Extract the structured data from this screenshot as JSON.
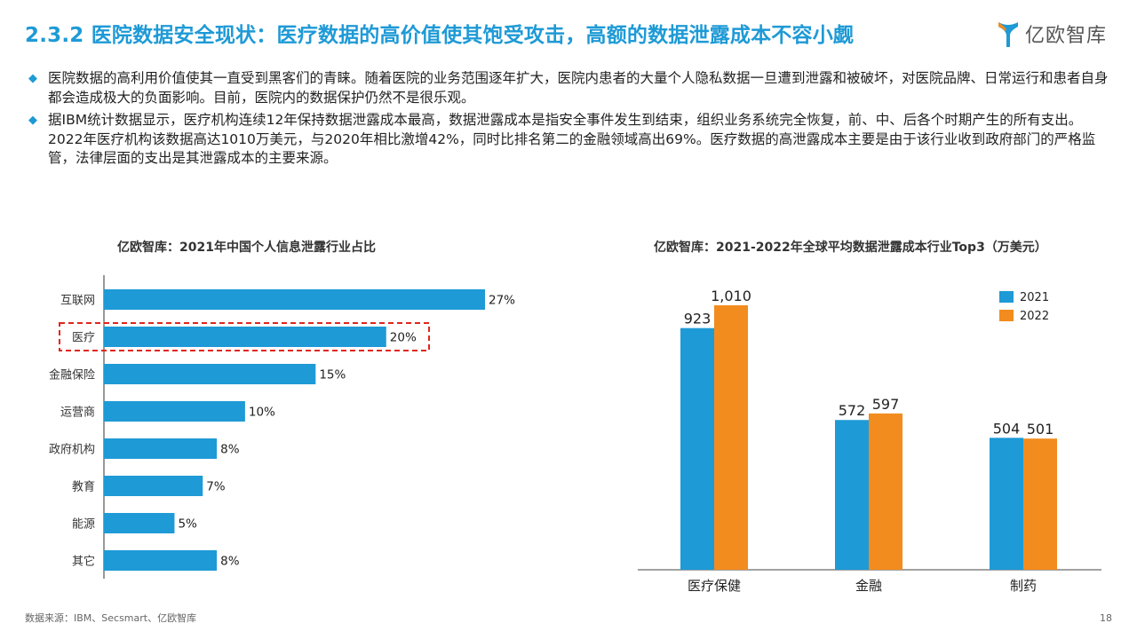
{
  "header": {
    "title": "2.3.2 医院数据安全现状：医疗数据的高价值使其饱受攻击，高额的数据泄露成本不容小觑",
    "logo_text": "亿欧智库"
  },
  "bullets": [
    "医院数据的高利用价值使其一直受到黑客们的青睐。随着医院的业务范围逐年扩大，医院内患者的大量个人隐私数据一旦遭到泄露和被破坏，对医院品牌、日常运行和患者自身都会造成极大的负面影响。目前，医院内的数据保护仍然不是很乐观。",
    "据IBM统计数据显示，医疗机构连续12年保持数据泄露成本最高，数据泄露成本是指安全事件发生到结束，组织业务系统完全恢复，前、中、后各个时期产生的所有支出。2022年医疗机构该数据高达1010万美元，与2020年相比激增42%，同时比排名第二的金融领域高出69%。医疗数据的高泄露成本主要是由于该行业收到政府部门的严格监管，法律层面的支出是其泄露成本的主要来源。"
  ],
  "colors": {
    "accent": "#1e9ad6",
    "bar_blue": "#1e9ad6",
    "bar_orange": "#f28c1e",
    "highlight_red": "#e0261c"
  },
  "chart_data": [
    {
      "type": "bar",
      "orientation": "horizontal",
      "title": "亿欧智库：2021年中国个人信息泄露行业占比",
      "categories": [
        "互联网",
        "医疗",
        "金融保险",
        "运营商",
        "政府机构",
        "教育",
        "能源",
        "其它"
      ],
      "values": [
        27,
        20,
        15,
        10,
        8,
        7,
        5,
        8
      ],
      "value_labels": [
        "27%",
        "20%",
        "15%",
        "10%",
        "8%",
        "7%",
        "5%",
        "8%"
      ],
      "unit": "%",
      "highlighted_category": "医疗",
      "xlim": [
        0,
        27
      ]
    },
    {
      "type": "bar",
      "orientation": "vertical",
      "title": "亿欧智库：2021-2022年全球平均数据泄露成本行业Top3（万美元）",
      "categories": [
        "医疗保健",
        "金融",
        "制药"
      ],
      "series": [
        {
          "name": "2021",
          "values": [
            923,
            572,
            504
          ],
          "labels": [
            "923",
            "572",
            "504"
          ]
        },
        {
          "name": "2022",
          "values": [
            1010,
            597,
            501
          ],
          "labels": [
            "1,010",
            "597",
            "501"
          ]
        }
      ],
      "legend_position": "top-right",
      "ylim": [
        0,
        1010
      ]
    }
  ],
  "footer": {
    "source": "数据来源：IBM、Secsmart、亿欧智库",
    "page_number": "18"
  }
}
